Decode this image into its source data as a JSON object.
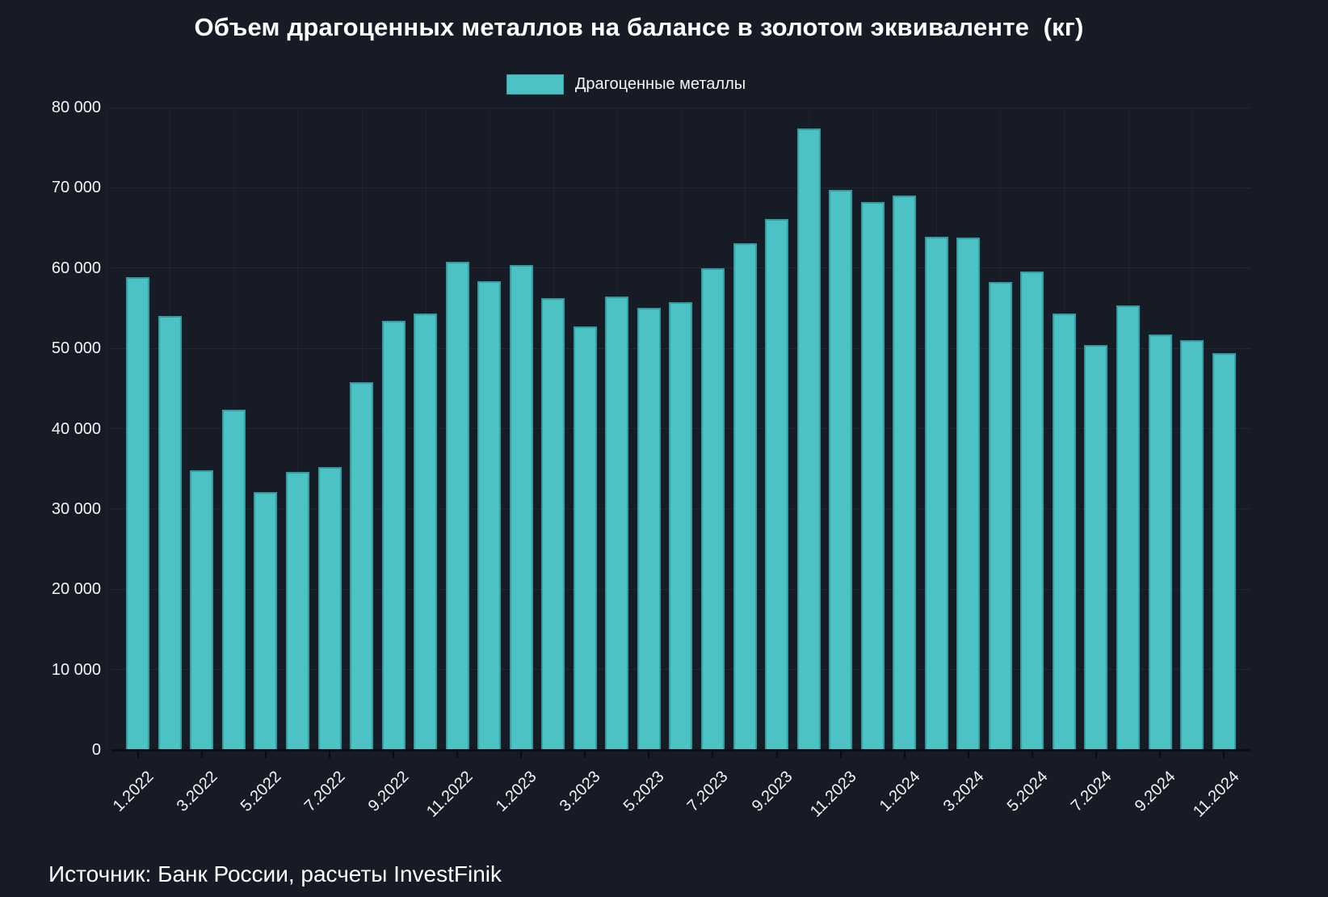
{
  "title": "Объем драгоценных металлов на балансе в золотом эквиваленте  (кг)",
  "legend": {
    "label": "Драгоценные металлы",
    "swatch_color": "#4cc2c4"
  },
  "source": "Источник: Банк России, расчеты InvestFinik",
  "colors": {
    "background": "#161b26",
    "bar_fill": "#4cc2c4",
    "bar_border": "#2f9fa4",
    "grid": "rgba(255,255,255,0.055)",
    "axis_line": "#0a0d13",
    "text": "#ffffff"
  },
  "chart_data": {
    "type": "bar",
    "series_name": "Драгоценные металлы",
    "categories": [
      "1.2022",
      "2.2022",
      "3.2022",
      "4.2022",
      "5.2022",
      "6.2022",
      "7.2022",
      "8.2022",
      "9.2022",
      "10.2022",
      "11.2022",
      "12.2022",
      "1.2023",
      "2.2023",
      "3.2023",
      "4.2023",
      "5.2023",
      "6.2023",
      "7.2023",
      "8.2023",
      "9.2023",
      "10.2023",
      "11.2023",
      "12.2023",
      "1.2024",
      "2.2024",
      "3.2024",
      "4.2024",
      "5.2024",
      "6.2024",
      "7.2024",
      "8.2024",
      "9.2024",
      "10.2024",
      "11.2024"
    ],
    "values": [
      58900,
      54000,
      34800,
      42400,
      32100,
      34600,
      35200,
      45800,
      53400,
      54300,
      60800,
      58400,
      60400,
      56300,
      52700,
      56500,
      55000,
      55700,
      60000,
      63100,
      66100,
      77400,
      69700,
      68200,
      69000,
      63900,
      63800,
      58300,
      59600,
      54300,
      50400,
      55300,
      51700,
      51000,
      49400
    ],
    "x_tick_labels": [
      "1.2022",
      "3.2022",
      "5.2022",
      "7.2022",
      "9.2022",
      "11.2022",
      "1.2023",
      "3.2023",
      "5.2023",
      "7.2023",
      "9.2023",
      "11.2023",
      "1.2024",
      "3.2024",
      "5.2024",
      "7.2024",
      "9.2024",
      "11.2024"
    ],
    "y_ticks": [
      0,
      10000,
      20000,
      30000,
      40000,
      50000,
      60000,
      70000,
      80000
    ],
    "y_tick_labels": [
      "0",
      "10 000",
      "20 000",
      "30 000",
      "40 000",
      "50 000",
      "60 000",
      "70 000",
      "80 000"
    ],
    "ylim": [
      0,
      80000
    ],
    "grid": true,
    "legend_position": "top",
    "title": "Объем драгоценных металлов на балансе в золотом эквиваленте  (кг)"
  }
}
